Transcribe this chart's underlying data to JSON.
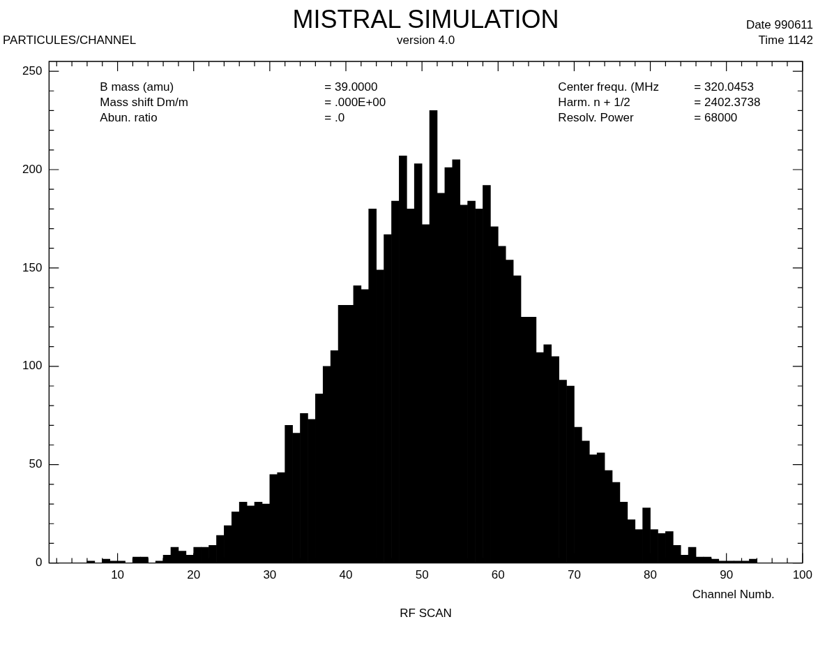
{
  "chart_data": {
    "type": "histogram",
    "title": "MISTRAL SIMULATION",
    "subtitle": "version 4.0",
    "ylabel": "PARTICULES/CHANNEL",
    "xlabel": "Channel Numb.",
    "annotations": [
      "B mass (amu) = 39.0000",
      "Mass shift Dm/m = .000E+00",
      "Abun. ratio = .0",
      "Center frequ. (MHz = 320.0453",
      "Harm. n + 1/2 = 2402.3738",
      "Resolv. Power = 68000",
      "Date 990611",
      "Time 1142",
      "RF SCAN"
    ],
    "bins": [
      1,
      2,
      3,
      4,
      5,
      6,
      7,
      8,
      9,
      10,
      11,
      12,
      13,
      14,
      15,
      16,
      17,
      18,
      19,
      20,
      21,
      22,
      23,
      24,
      25,
      26,
      27,
      28,
      29,
      30,
      31,
      32,
      33,
      34,
      35,
      36,
      37,
      38,
      39,
      40,
      41,
      42,
      43,
      44,
      45,
      46,
      47,
      48,
      49,
      50,
      51,
      52,
      53,
      54,
      55,
      56,
      57,
      58,
      59,
      60,
      61,
      62,
      63,
      64,
      65,
      66,
      67,
      68,
      69,
      70,
      71,
      72,
      73,
      74,
      75,
      76,
      77,
      78,
      79,
      80,
      81,
      82,
      83,
      84,
      85,
      86,
      87,
      88,
      89,
      90,
      91,
      92,
      93,
      94,
      95,
      96,
      97,
      98,
      99,
      100
    ],
    "values": [
      0,
      0,
      0,
      0,
      0,
      1,
      0,
      2,
      1,
      1,
      0,
      3,
      3,
      0,
      1,
      4,
      8,
      6,
      4,
      8,
      8,
      9,
      14,
      19,
      26,
      31,
      29,
      31,
      30,
      45,
      46,
      70,
      66,
      76,
      73,
      86,
      100,
      108,
      131,
      131,
      141,
      139,
      180,
      149,
      167,
      184,
      207,
      180,
      203,
      172,
      230,
      188,
      201,
      205,
      182,
      184,
      180,
      192,
      171,
      161,
      154,
      146,
      125,
      125,
      107,
      111,
      105,
      93,
      90,
      69,
      62,
      55,
      56,
      47,
      41,
      31,
      22,
      17,
      28,
      17,
      15,
      16,
      9,
      4,
      8,
      3,
      3,
      2,
      1,
      1,
      1,
      1,
      2,
      0,
      0,
      0,
      0,
      0,
      0
    ],
    "color": "#000000",
    "xlim": [
      1,
      100
    ],
    "xticks": [
      {
        "value": 2,
        "label": null
      },
      {
        "value": 4,
        "label": null
      },
      {
        "value": 6,
        "label": null
      },
      {
        "value": 8,
        "label": null
      },
      10,
      {
        "value": 12,
        "label": null
      },
      {
        "value": 14,
        "label": null
      },
      {
        "value": 16,
        "label": null
      },
      {
        "value": 18,
        "label": null
      },
      20,
      {
        "value": 22,
        "label": null
      },
      {
        "value": 24,
        "label": null
      },
      {
        "value": 26,
        "label": null
      },
      {
        "value": 28,
        "label": null
      },
      30,
      {
        "value": 32,
        "label": null
      },
      {
        "value": 34,
        "label": null
      },
      {
        "value": 36,
        "label": null
      },
      {
        "value": 38,
        "label": null
      },
      40,
      {
        "value": 42,
        "label": null
      },
      {
        "value": 44,
        "label": null
      },
      {
        "value": 46,
        "label": null
      },
      {
        "value": 48,
        "label": null
      },
      50,
      {
        "value": 52,
        "label": null
      },
      {
        "value": 54,
        "label": null
      },
      {
        "value": 56,
        "label": null
      },
      {
        "value": 58,
        "label": null
      },
      60,
      {
        "value": 62,
        "label": null
      },
      {
        "value": 64,
        "label": null
      },
      {
        "value": 66,
        "label": null
      },
      {
        "value": 68,
        "label": null
      },
      70,
      {
        "value": 72,
        "label": null
      },
      {
        "value": 74,
        "label": null
      },
      {
        "value": 76,
        "label": null
      },
      {
        "value": 78,
        "label": null
      },
      80,
      {
        "value": 82,
        "label": null
      },
      {
        "value": 84,
        "label": null
      },
      {
        "value": 86,
        "label": null
      },
      {
        "value": 88,
        "label": null
      },
      90,
      {
        "value": 92,
        "label": null
      },
      {
        "value": 94,
        "label": null
      },
      {
        "value": 96,
        "label": null
      },
      {
        "value": 98,
        "label": null
      },
      100
    ],
    "ylim": [
      0,
      255
    ],
    "yticks": [
      0,
      {
        "value": 10,
        "label": null
      },
      {
        "value": 20,
        "label": null
      },
      {
        "value": 30,
        "label": null
      },
      {
        "value": 40,
        "label": null
      },
      50,
      {
        "value": 60,
        "label": null
      },
      {
        "value": 70,
        "label": null
      },
      {
        "value": 80,
        "label": null
      },
      {
        "value": 90,
        "label": null
      },
      100,
      {
        "value": 110,
        "label": null
      },
      {
        "value": 120,
        "label": null
      },
      {
        "value": 130,
        "label": null
      },
      {
        "value": 140,
        "label": null
      },
      150,
      {
        "value": 160,
        "label": null
      },
      {
        "value": 170,
        "label": null
      },
      {
        "value": 180,
        "label": null
      },
      {
        "value": 190,
        "label": null
      },
      200,
      {
        "value": 210,
        "label": null
      },
      {
        "value": 220,
        "label": null
      },
      {
        "value": 230,
        "label": null
      },
      {
        "value": 240,
        "label": null
      },
      250
    ],
    "grid": false,
    "legend": false
  }
}
